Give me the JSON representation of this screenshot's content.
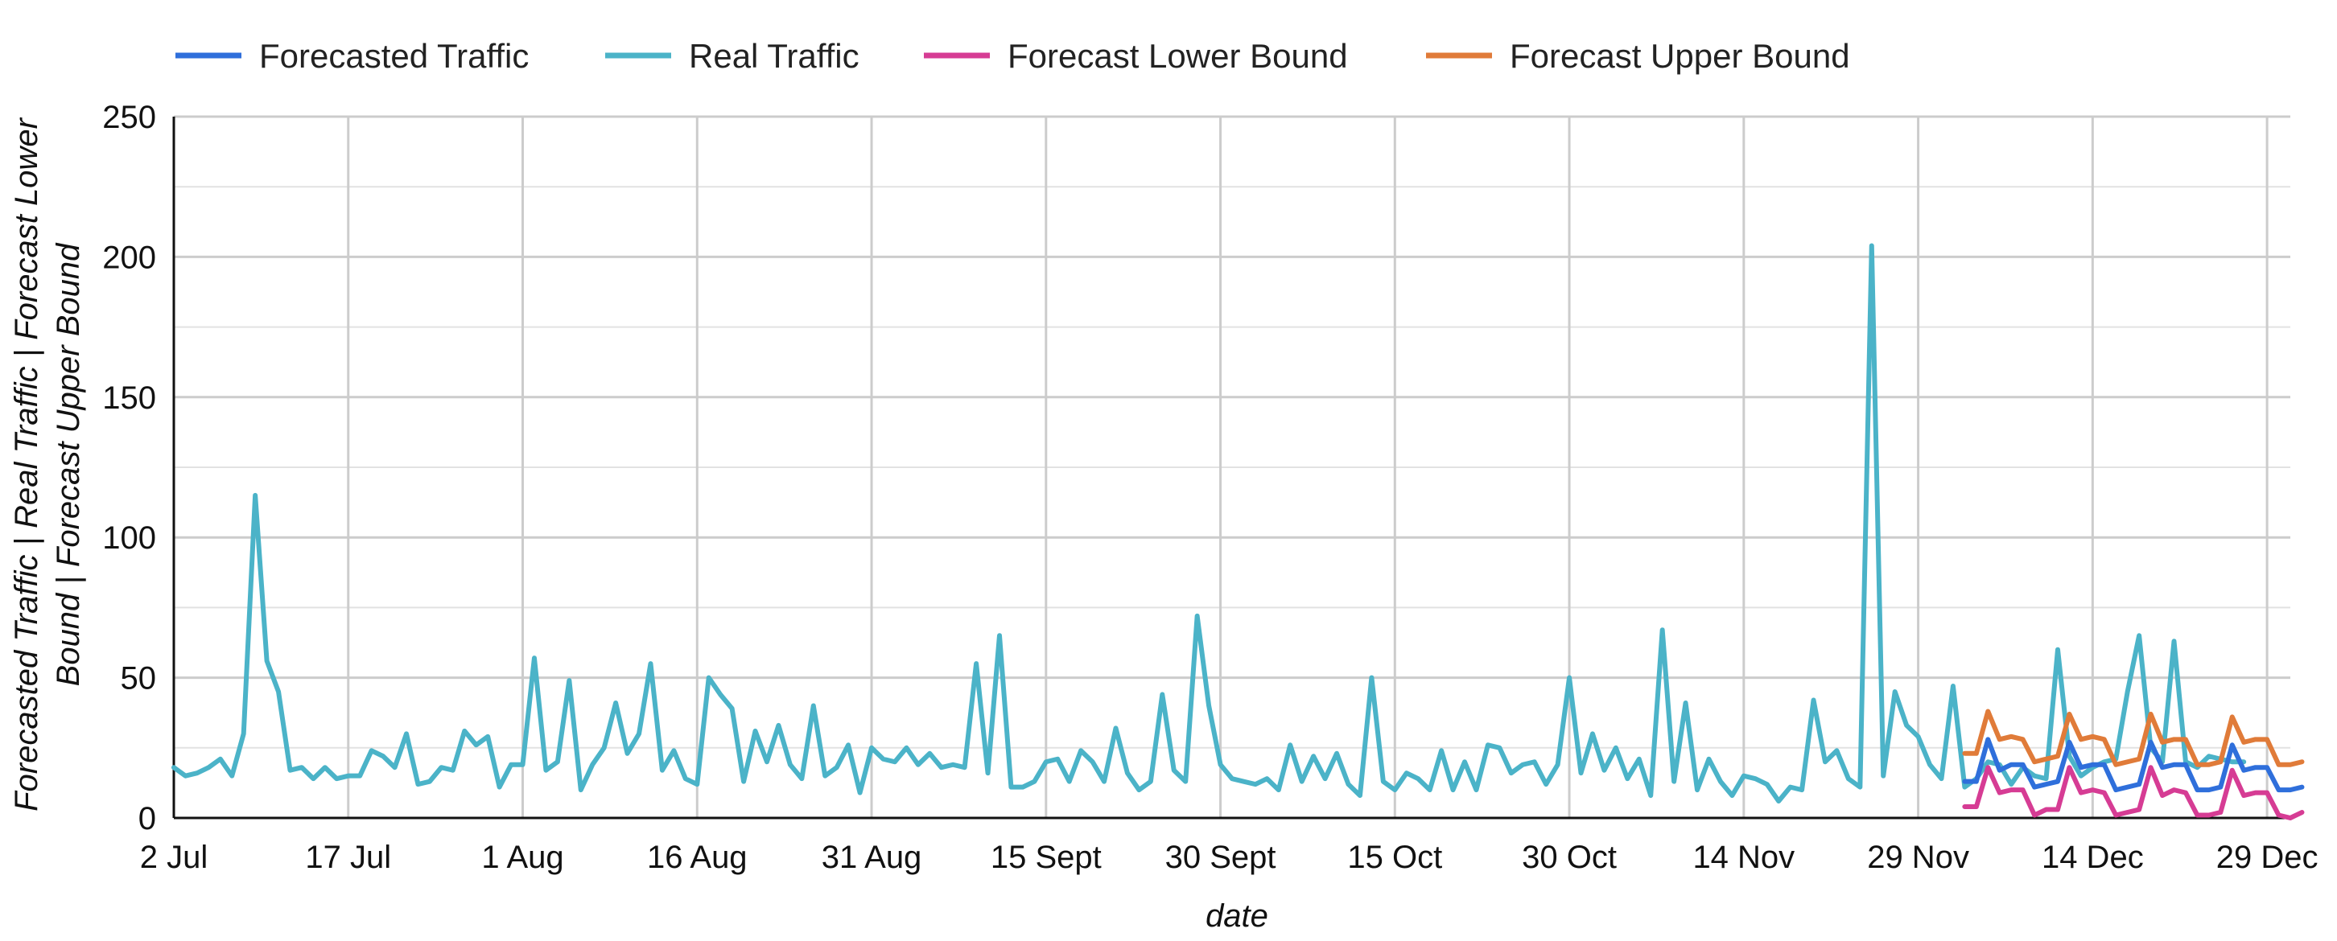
{
  "chart_data": {
    "type": "line",
    "xlabel": "date",
    "ylabel_lines": [
      "Forecasted Traffic | Real Traffic | Forecast Lower",
      "Bound | Forecast Upper Bound"
    ],
    "ylim": [
      0,
      250
    ],
    "yticks": [
      0,
      50,
      100,
      150,
      200,
      250
    ],
    "grid": true,
    "legend_position": "top-left",
    "x_range": [
      "2024-07-02",
      "2024-12-31"
    ],
    "xticks": [
      {
        "date": "2024-07-02",
        "label": "2 Jul"
      },
      {
        "date": "2024-07-17",
        "label": "17 Jul"
      },
      {
        "date": "2024-08-01",
        "label": "1 Aug"
      },
      {
        "date": "2024-08-16",
        "label": "16 Aug"
      },
      {
        "date": "2024-08-31",
        "label": "31 Aug"
      },
      {
        "date": "2024-09-15",
        "label": "15 Sept"
      },
      {
        "date": "2024-09-30",
        "label": "30 Sept"
      },
      {
        "date": "2024-10-15",
        "label": "15 Oct"
      },
      {
        "date": "2024-10-30",
        "label": "30 Oct"
      },
      {
        "date": "2024-11-14",
        "label": "14 Nov"
      },
      {
        "date": "2024-11-29",
        "label": "29 Nov"
      },
      {
        "date": "2024-12-14",
        "label": "14 Dec"
      },
      {
        "date": "2024-12-29",
        "label": "29 Dec"
      }
    ],
    "series": [
      {
        "name": "Forecasted Traffic",
        "color": "#2f6fdb",
        "start_date": "2024-12-03",
        "values": [
          13,
          13,
          28,
          17,
          19,
          19,
          11,
          12,
          13,
          27,
          18,
          19,
          19,
          10,
          11,
          12,
          27,
          18,
          19,
          19,
          10,
          10,
          11,
          26,
          17,
          18,
          18,
          10,
          10,
          11
        ]
      },
      {
        "name": "Real Traffic",
        "color": "#4bb3c8",
        "start_date": "2024-07-02",
        "values": [
          18,
          15,
          16,
          18,
          21,
          15,
          30,
          115,
          56,
          45,
          17,
          18,
          14,
          18,
          14,
          15,
          15,
          24,
          22,
          18,
          30,
          12,
          13,
          18,
          17,
          31,
          26,
          29,
          11,
          19,
          19,
          57,
          17,
          20,
          49,
          10,
          19,
          25,
          41,
          23,
          30,
          55,
          17,
          24,
          14,
          12,
          50,
          44,
          39,
          13,
          31,
          20,
          33,
          19,
          14,
          40,
          15,
          18,
          26,
          9,
          25,
          21,
          20,
          25,
          19,
          23,
          18,
          19,
          18,
          55,
          16,
          65,
          11,
          11,
          13,
          20,
          21,
          13,
          24,
          20,
          13,
          32,
          16,
          10,
          13,
          44,
          17,
          13,
          72,
          40,
          19,
          14,
          13,
          12,
          14,
          10,
          26,
          13,
          22,
          14,
          23,
          12,
          8,
          50,
          13,
          10,
          16,
          14,
          10,
          24,
          10,
          20,
          10,
          26,
          25,
          16,
          19,
          20,
          12,
          19,
          50,
          16,
          30,
          17,
          25,
          14,
          21,
          8,
          67,
          13,
          41,
          10,
          21,
          13,
          8,
          15,
          14,
          12,
          6,
          11,
          10,
          42,
          20,
          24,
          14,
          11,
          204,
          15,
          45,
          33,
          29,
          19,
          14,
          47,
          11,
          14,
          20,
          19,
          12,
          18,
          15,
          14,
          60,
          22,
          15,
          18,
          20,
          21,
          45,
          65,
          25,
          20,
          63,
          20,
          18,
          22,
          21,
          20,
          20
        ]
      },
      {
        "name": "Forecast Lower Bound",
        "color": "#d63c94",
        "start_date": "2024-12-03",
        "values": [
          4,
          4,
          18,
          9,
          10,
          10,
          1,
          3,
          3,
          18,
          9,
          10,
          9,
          1,
          2,
          3,
          18,
          8,
          10,
          9,
          1,
          1,
          2,
          17,
          8,
          9,
          9,
          1,
          0,
          2
        ]
      },
      {
        "name": "Forecast Upper Bound",
        "color": "#e07b39",
        "start_date": "2024-12-03",
        "values": [
          23,
          23,
          38,
          28,
          29,
          28,
          20,
          21,
          22,
          37,
          28,
          29,
          28,
          19,
          20,
          21,
          37,
          27,
          28,
          28,
          19,
          19,
          20,
          36,
          27,
          28,
          28,
          19,
          19,
          20
        ]
      }
    ]
  }
}
